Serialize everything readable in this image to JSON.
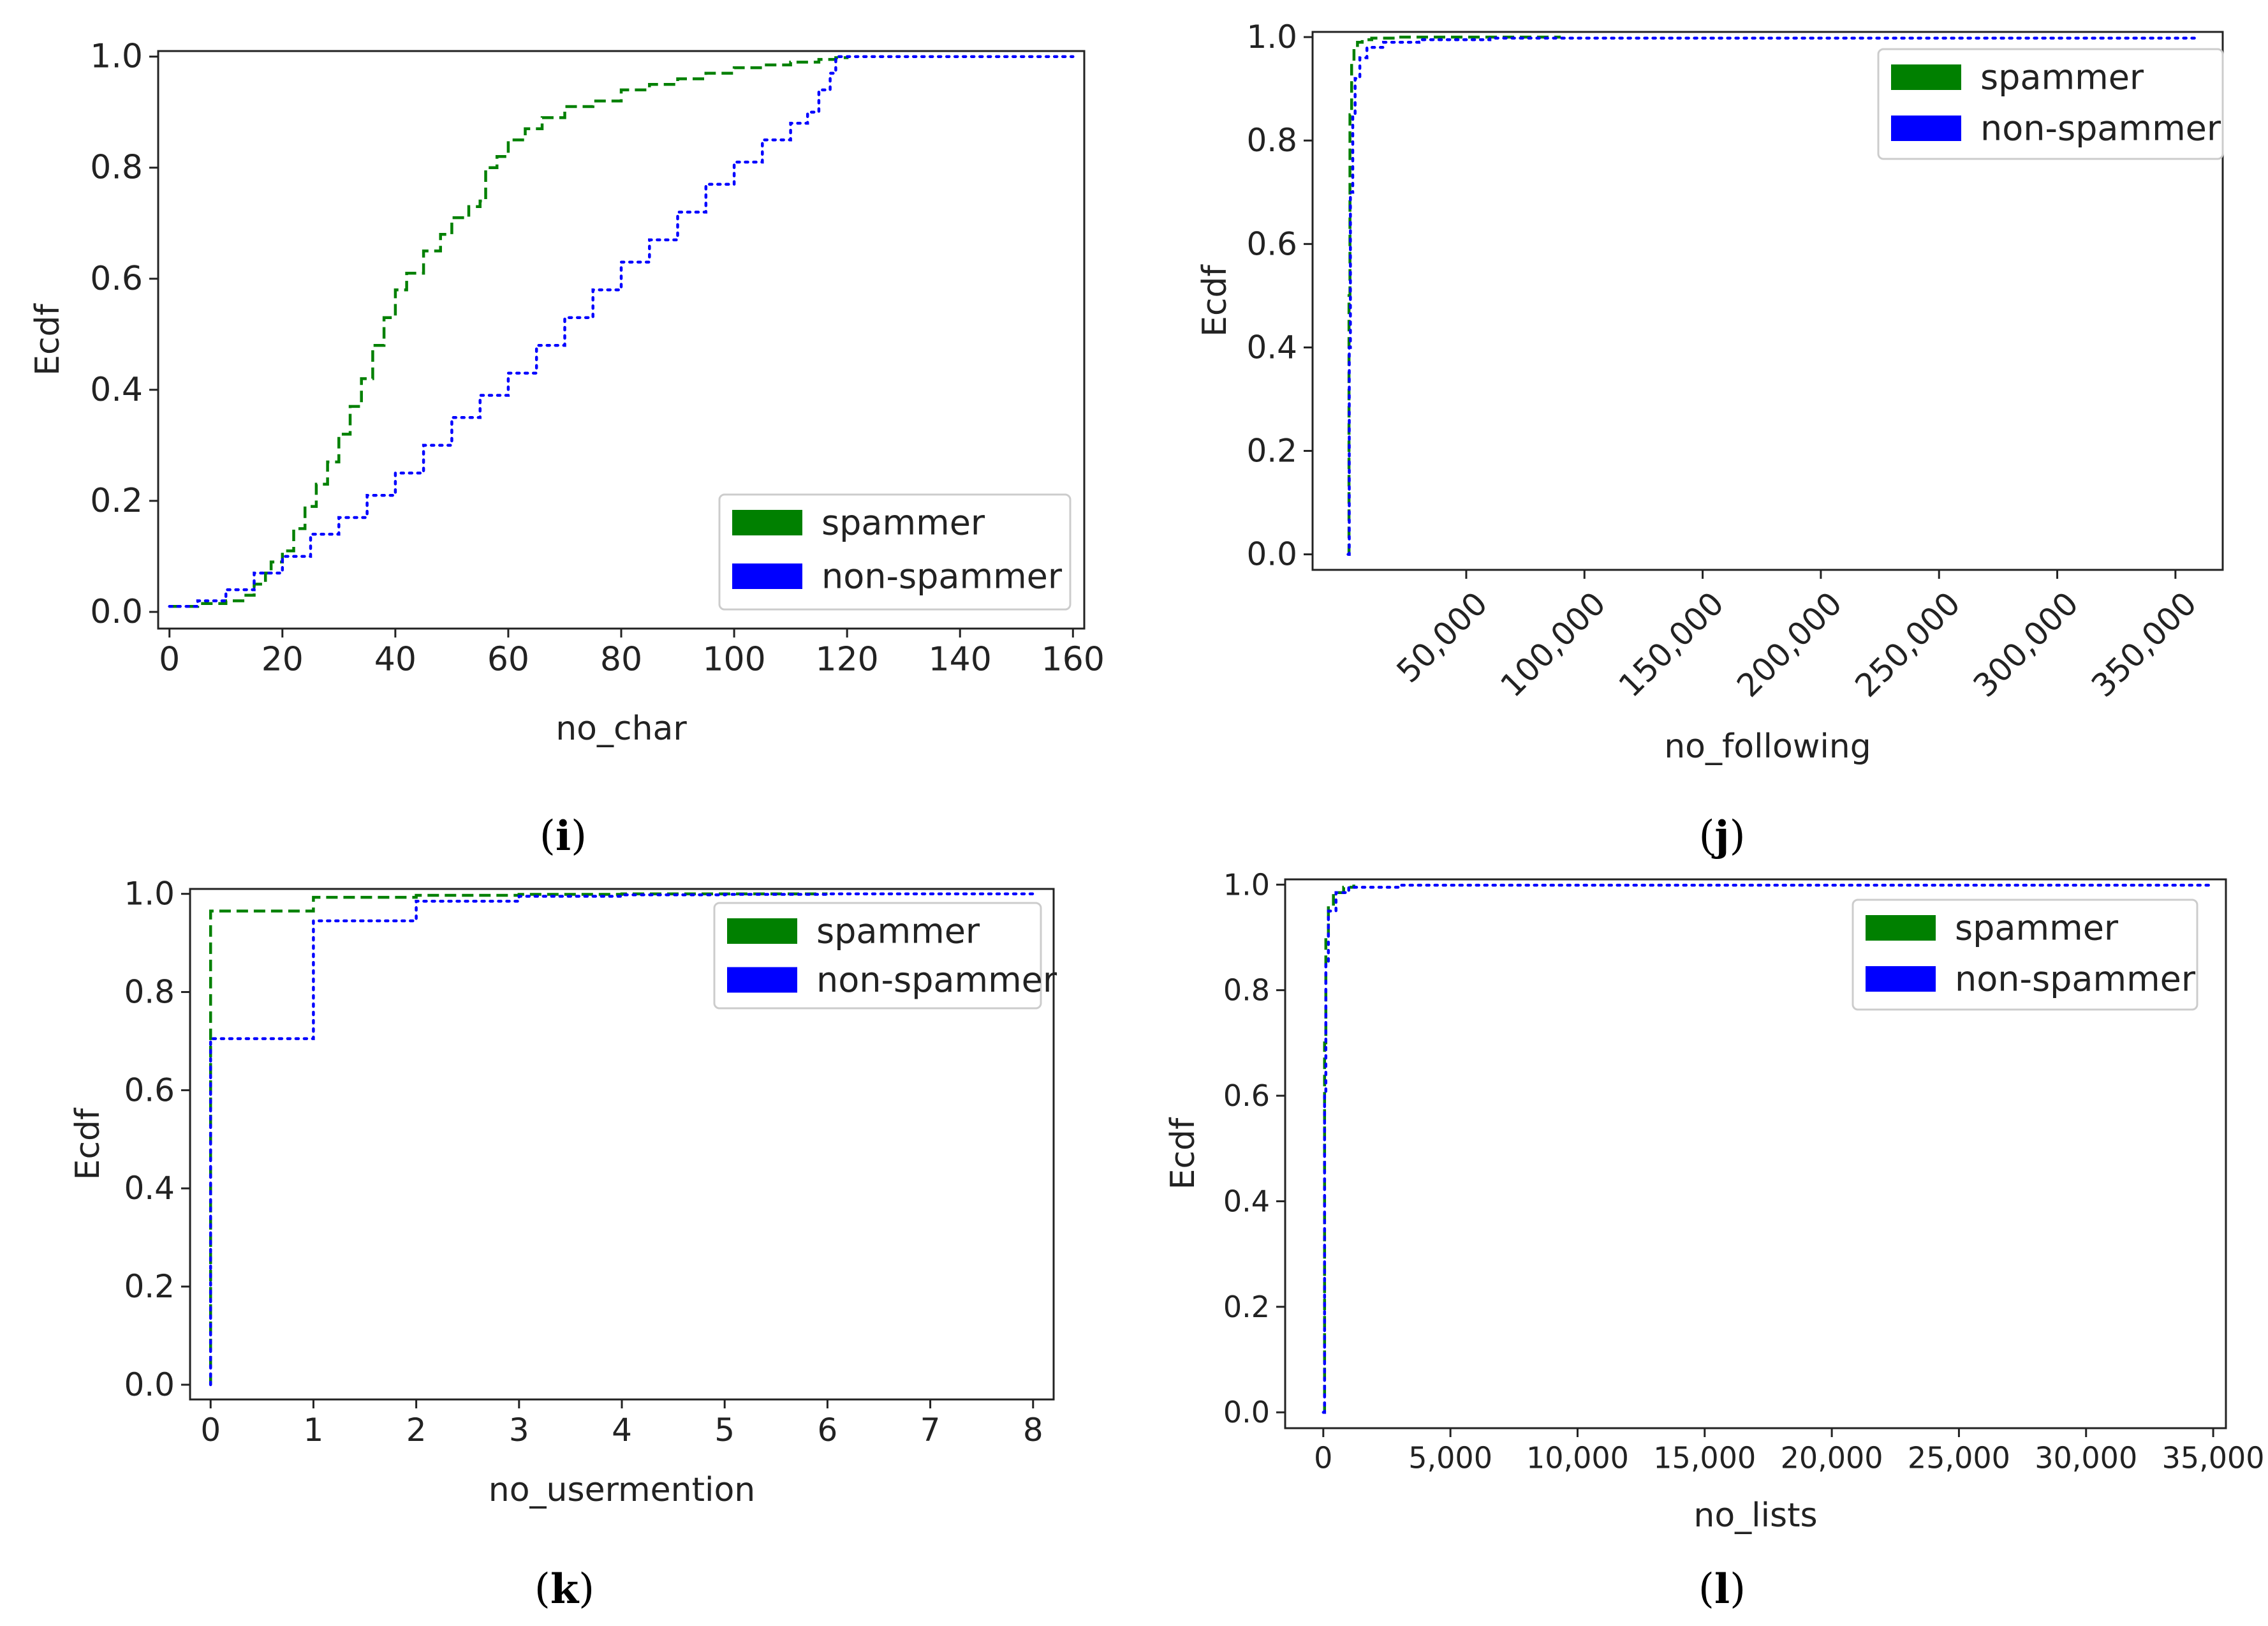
{
  "figure": {
    "legend_labels": [
      "spammer",
      "non-spammer"
    ],
    "colors": {
      "spammer": "#008000",
      "non_spammer": "#0000ff"
    }
  },
  "chart_data": [
    {
      "panel": "i",
      "type": "line",
      "subtype": "ecdf-step",
      "caption": "(i)",
      "xlabel": "no_char",
      "ylabel": "Ecdf",
      "xlim": [
        -2,
        162
      ],
      "ylim": [
        -0.03,
        1.01
      ],
      "xticks": [
        0,
        20,
        40,
        60,
        80,
        100,
        120,
        140,
        160
      ],
      "xtick_labels": [
        "0",
        "20",
        "40",
        "60",
        "80",
        "100",
        "120",
        "140",
        "160"
      ],
      "xtick_rotation": 0,
      "yticks": [
        0.0,
        0.2,
        0.4,
        0.6,
        0.8,
        1.0
      ],
      "ytick_labels": [
        "0.0",
        "0.2",
        "0.4",
        "0.6",
        "0.8",
        "1.0"
      ],
      "legend": {
        "position": "lower-right"
      },
      "series": [
        {
          "name": "spammer",
          "color": "#008000",
          "style": "dashed",
          "x": [
            0,
            5,
            10,
            13,
            15,
            17,
            18,
            20,
            22,
            24,
            26,
            28,
            30,
            32,
            34,
            36,
            38,
            40,
            42,
            45,
            48,
            50,
            53,
            55,
            56,
            58,
            60,
            63,
            66,
            70,
            75,
            80,
            85,
            90,
            95,
            100,
            105,
            110,
            115,
            118,
            120
          ],
          "y": [
            0.01,
            0.015,
            0.02,
            0.03,
            0.05,
            0.07,
            0.09,
            0.11,
            0.15,
            0.19,
            0.23,
            0.27,
            0.32,
            0.37,
            0.42,
            0.48,
            0.53,
            0.58,
            0.61,
            0.65,
            0.68,
            0.71,
            0.73,
            0.74,
            0.8,
            0.82,
            0.85,
            0.87,
            0.89,
            0.91,
            0.92,
            0.94,
            0.95,
            0.96,
            0.97,
            0.98,
            0.985,
            0.99,
            0.995,
            0.998,
            1.0
          ]
        },
        {
          "name": "non-spammer",
          "color": "#0000ff",
          "style": "dotted",
          "x": [
            0,
            5,
            10,
            15,
            20,
            25,
            30,
            35,
            40,
            45,
            50,
            55,
            60,
            65,
            70,
            75,
            80,
            85,
            90,
            95,
            100,
            105,
            110,
            113,
            115,
            117,
            118,
            120,
            160
          ],
          "y": [
            0.01,
            0.02,
            0.04,
            0.07,
            0.1,
            0.14,
            0.17,
            0.21,
            0.25,
            0.3,
            0.35,
            0.39,
            0.43,
            0.48,
            0.53,
            0.58,
            0.63,
            0.67,
            0.72,
            0.77,
            0.81,
            0.85,
            0.88,
            0.9,
            0.94,
            0.97,
            1.0,
            1.0,
            1.0
          ]
        }
      ]
    },
    {
      "panel": "j",
      "type": "line",
      "subtype": "ecdf-step",
      "caption": "(j)",
      "xlabel": "no_following",
      "ylabel": "Ecdf",
      "xlim": [
        -15000,
        370000
      ],
      "ylim": [
        -0.03,
        1.01
      ],
      "xticks": [
        50000,
        100000,
        150000,
        200000,
        250000,
        300000,
        350000
      ],
      "xtick_labels": [
        "50,000",
        "100,000",
        "150,000",
        "200,000",
        "250,000",
        "300,000",
        "350,000"
      ],
      "xtick_rotation": -45,
      "yticks": [
        0.0,
        0.2,
        0.4,
        0.6,
        0.8,
        1.0
      ],
      "ytick_labels": [
        "0.0",
        "0.2",
        "0.4",
        "0.6",
        "0.8",
        "1.0"
      ],
      "legend": {
        "position": "top-right"
      },
      "series": [
        {
          "name": "spammer",
          "color": "#008000",
          "style": "dashed",
          "x": [
            0,
            400,
            800,
            1500,
            2500,
            4000,
            6000,
            10000,
            20000,
            90000
          ],
          "y": [
            0.0,
            0.5,
            0.85,
            0.95,
            0.98,
            0.99,
            0.995,
            0.998,
            1.0,
            1.0
          ]
        },
        {
          "name": "non-spammer",
          "color": "#0000ff",
          "style": "dotted",
          "x": [
            0,
            500,
            1000,
            2000,
            3000,
            5000,
            8000,
            15000,
            30000,
            60000,
            360000
          ],
          "y": [
            0.0,
            0.4,
            0.7,
            0.85,
            0.92,
            0.96,
            0.98,
            0.99,
            0.995,
            0.998,
            1.0
          ]
        }
      ]
    },
    {
      "panel": "k",
      "type": "line",
      "subtype": "ecdf-step",
      "caption": "(k)",
      "xlabel": "no_usermention",
      "ylabel": "Ecdf",
      "xlim": [
        -0.2,
        8.2
      ],
      "ylim": [
        -0.03,
        1.01
      ],
      "xticks": [
        0,
        1,
        2,
        3,
        4,
        5,
        6,
        7,
        8
      ],
      "xtick_labels": [
        "0",
        "1",
        "2",
        "3",
        "4",
        "5",
        "6",
        "7",
        "8"
      ],
      "xtick_rotation": 0,
      "yticks": [
        0.0,
        0.2,
        0.4,
        0.6,
        0.8,
        1.0
      ],
      "ytick_labels": [
        "0.0",
        "0.2",
        "0.4",
        "0.6",
        "0.8",
        "1.0"
      ],
      "legend": {
        "position": "top-right"
      },
      "series": [
        {
          "name": "spammer",
          "color": "#008000",
          "style": "dashed",
          "x": [
            0,
            0,
            1,
            2,
            3,
            4,
            5,
            6
          ],
          "y": [
            0.0,
            0.965,
            0.993,
            0.997,
            0.999,
            1.0,
            1.0,
            1.0
          ]
        },
        {
          "name": "non-spammer",
          "color": "#0000ff",
          "style": "dotted",
          "x": [
            0,
            0,
            1,
            2,
            3,
            4,
            5,
            6,
            7,
            8
          ],
          "y": [
            0.0,
            0.705,
            0.945,
            0.985,
            0.995,
            0.998,
            0.999,
            1.0,
            1.0,
            1.0
          ]
        }
      ]
    },
    {
      "panel": "l",
      "type": "line",
      "subtype": "ecdf-step",
      "caption": "(l)",
      "xlabel": "no_lists",
      "ylabel": "Ecdf",
      "xlim": [
        -1500,
        35500
      ],
      "ylim": [
        -0.03,
        1.01
      ],
      "xticks": [
        0,
        5000,
        10000,
        15000,
        20000,
        25000,
        30000,
        35000
      ],
      "xtick_labels": [
        "0",
        "5,000",
        "10,000",
        "15,000",
        "20,000",
        "25,000",
        "30,000",
        "35,000"
      ],
      "xtick_rotation": 0,
      "yticks": [
        0.0,
        0.2,
        0.4,
        0.6,
        0.8,
        1.0
      ],
      "ytick_labels": [
        "0.0",
        "0.2",
        "0.4",
        "0.6",
        "0.8",
        "1.0"
      ],
      "legend": {
        "position": "top-right"
      },
      "series": [
        {
          "name": "spammer",
          "color": "#008000",
          "style": "dashed",
          "x": [
            0,
            50,
            100,
            200,
            400,
            800,
            1200
          ],
          "y": [
            0.0,
            0.7,
            0.9,
            0.96,
            0.985,
            0.995,
            1.0
          ]
        },
        {
          "name": "non-spammer",
          "color": "#0000ff",
          "style": "dotted",
          "x": [
            0,
            50,
            100,
            200,
            500,
            1000,
            3000,
            35000
          ],
          "y": [
            0.0,
            0.6,
            0.85,
            0.95,
            0.985,
            0.995,
            0.999,
            1.0
          ]
        }
      ]
    }
  ]
}
